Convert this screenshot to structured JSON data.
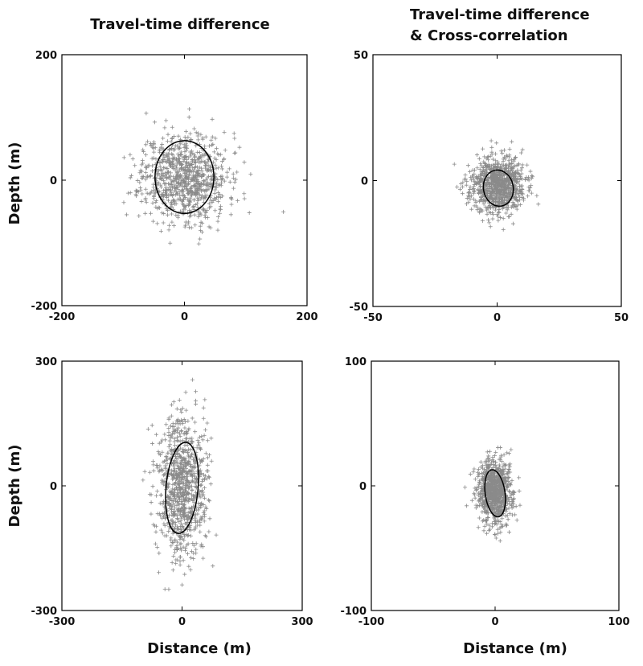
{
  "figure": {
    "column_titles": [
      [
        "Travel-time difference"
      ],
      [
        "Travel-time difference",
        "& Cross-correlation"
      ]
    ],
    "row_ylabels": [
      "Depth (m)",
      "Depth (m)"
    ],
    "bottom_xlabels": [
      "Distance (m)",
      "Distance (m)"
    ]
  },
  "chart_data": [
    {
      "type": "scatter",
      "title": "Travel-time difference",
      "xlabel": "",
      "ylabel": "Depth (m)",
      "xlim": [
        -200,
        200
      ],
      "ylim": [
        -200,
        200
      ],
      "xticks": [
        -200,
        0,
        200
      ],
      "yticks": [
        -200,
        0,
        200
      ],
      "n_points": 900,
      "spread": [
        35,
        35
      ],
      "center": [
        0,
        5
      ],
      "seed": 11,
      "ellipse": {
        "cx": 0,
        "cy": 5,
        "rx": 48,
        "ry": 58,
        "angle_deg": 0
      },
      "marker": "+",
      "color": "#8a8a8a"
    },
    {
      "type": "scatter",
      "title": "Travel-time difference & Cross-correlation",
      "xlabel": "",
      "ylabel": "",
      "xlim": [
        -50,
        50
      ],
      "ylim": [
        -50,
        50
      ],
      "xticks": [
        -50,
        0,
        50
      ],
      "yticks": [
        -50,
        0,
        50
      ],
      "n_points": 900,
      "spread": [
        5.5,
        5.5
      ],
      "center": [
        0,
        -2
      ],
      "seed": 23,
      "ellipse": {
        "cx": 0.5,
        "cy": -3,
        "rx": 6,
        "ry": 7.2,
        "angle_deg": 10
      },
      "marker": "+",
      "color": "#8a8a8a"
    },
    {
      "type": "scatter",
      "title": "",
      "xlabel": "Distance (m)",
      "ylabel": "Depth (m)",
      "xlim": [
        -300,
        300
      ],
      "ylim": [
        -300,
        300
      ],
      "xticks": [
        -300,
        0,
        300
      ],
      "yticks": [
        -300,
        0,
        300
      ],
      "n_points": 900,
      "spread": [
        30,
        85
      ],
      "center": [
        0,
        0
      ],
      "seed": 37,
      "ellipse": {
        "cx": 0,
        "cy": -5,
        "rx": 40,
        "ry": 110,
        "angle_deg": -5
      },
      "marker": "+",
      "color": "#8a8a8a"
    },
    {
      "type": "scatter",
      "title": "",
      "xlabel": "Distance (m)",
      "ylabel": "",
      "xlim": [
        -100,
        100
      ],
      "ylim": [
        -100,
        100
      ],
      "xticks": [
        -100,
        0,
        100
      ],
      "yticks": [
        -100,
        0,
        100
      ],
      "n_points": 900,
      "spread": [
        7,
        13
      ],
      "center": [
        0,
        -5
      ],
      "seed": 53,
      "ellipse": {
        "cx": 0,
        "cy": -6,
        "rx": 8,
        "ry": 19,
        "angle_deg": 8
      },
      "marker": "+",
      "color": "#8a8a8a"
    }
  ]
}
